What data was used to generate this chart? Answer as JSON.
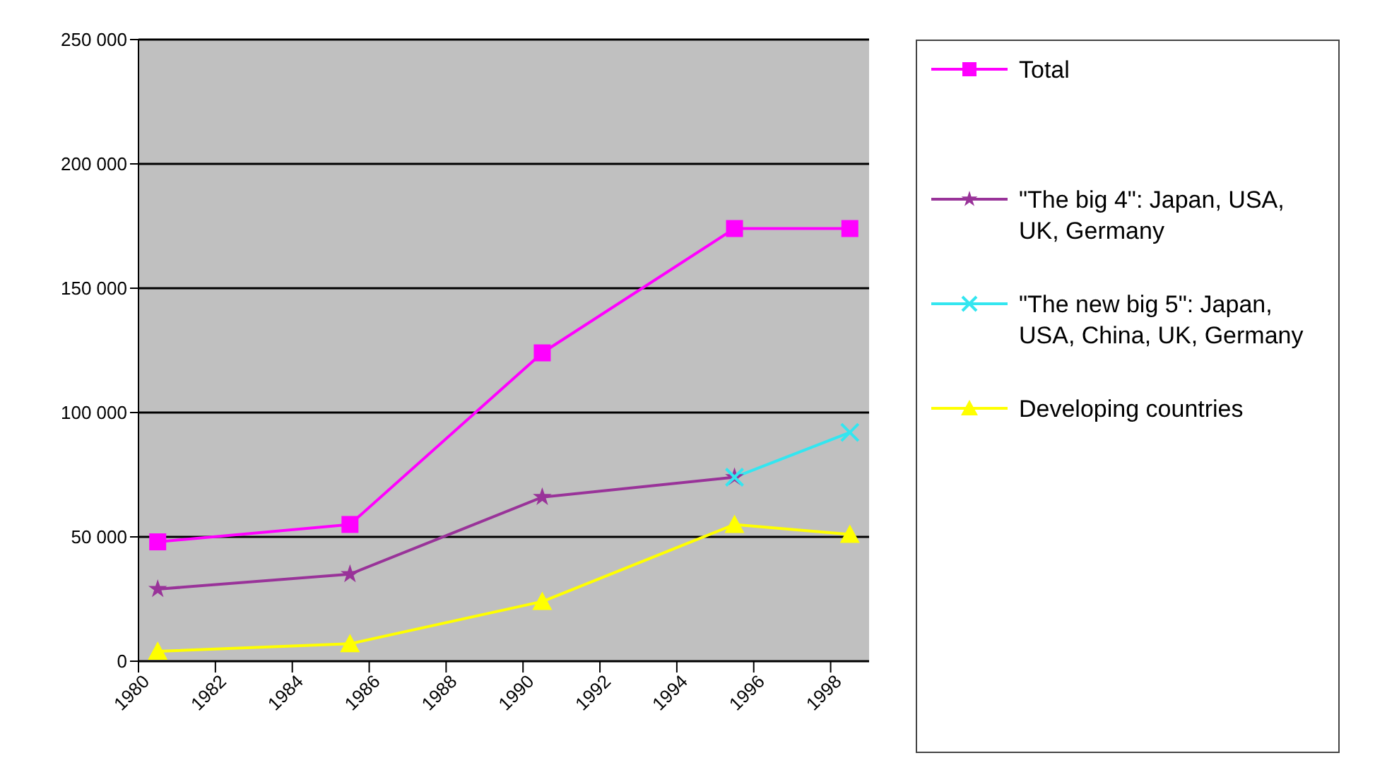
{
  "chart_data": {
    "type": "line",
    "x": [
      1980.5,
      1985.5,
      1990.5,
      1995.5,
      1998.5
    ],
    "xlim": [
      1980,
      1999
    ],
    "xticks": [
      1980,
      1982,
      1984,
      1986,
      1988,
      1990,
      1992,
      1994,
      1996,
      1998
    ],
    "ylim": [
      0,
      250000
    ],
    "yticks": [
      {
        "value": 0,
        "label": "0"
      },
      {
        "value": 50000,
        "label": "50 000"
      },
      {
        "value": 100000,
        "label": "100 000"
      },
      {
        "value": 150000,
        "label": "150 000"
      },
      {
        "value": 200000,
        "label": "200 000"
      },
      {
        "value": 250000,
        "label": "250 000"
      }
    ],
    "grid": "y",
    "legend": "right",
    "series": [
      {
        "name": "Total",
        "color": "#ff00ff",
        "marker": "square",
        "values": [
          48000,
          55000,
          124000,
          174000,
          174000
        ]
      },
      {
        "name": "\"The big 4\": Japan, USA, UK, Germany",
        "color": "#993399",
        "marker": "star",
        "values": [
          29000,
          35000,
          66000,
          74000,
          null
        ]
      },
      {
        "name": "\"The new big 5\": Japan, USA, China, UK, Germany",
        "color": "#33e6f0",
        "marker": "cross",
        "values": [
          null,
          null,
          null,
          74000,
          92000
        ]
      },
      {
        "name": "Developing countries",
        "color": "#ffff00",
        "marker": "triangle",
        "values": [
          4000,
          7000,
          24000,
          55000,
          51000
        ]
      }
    ]
  }
}
